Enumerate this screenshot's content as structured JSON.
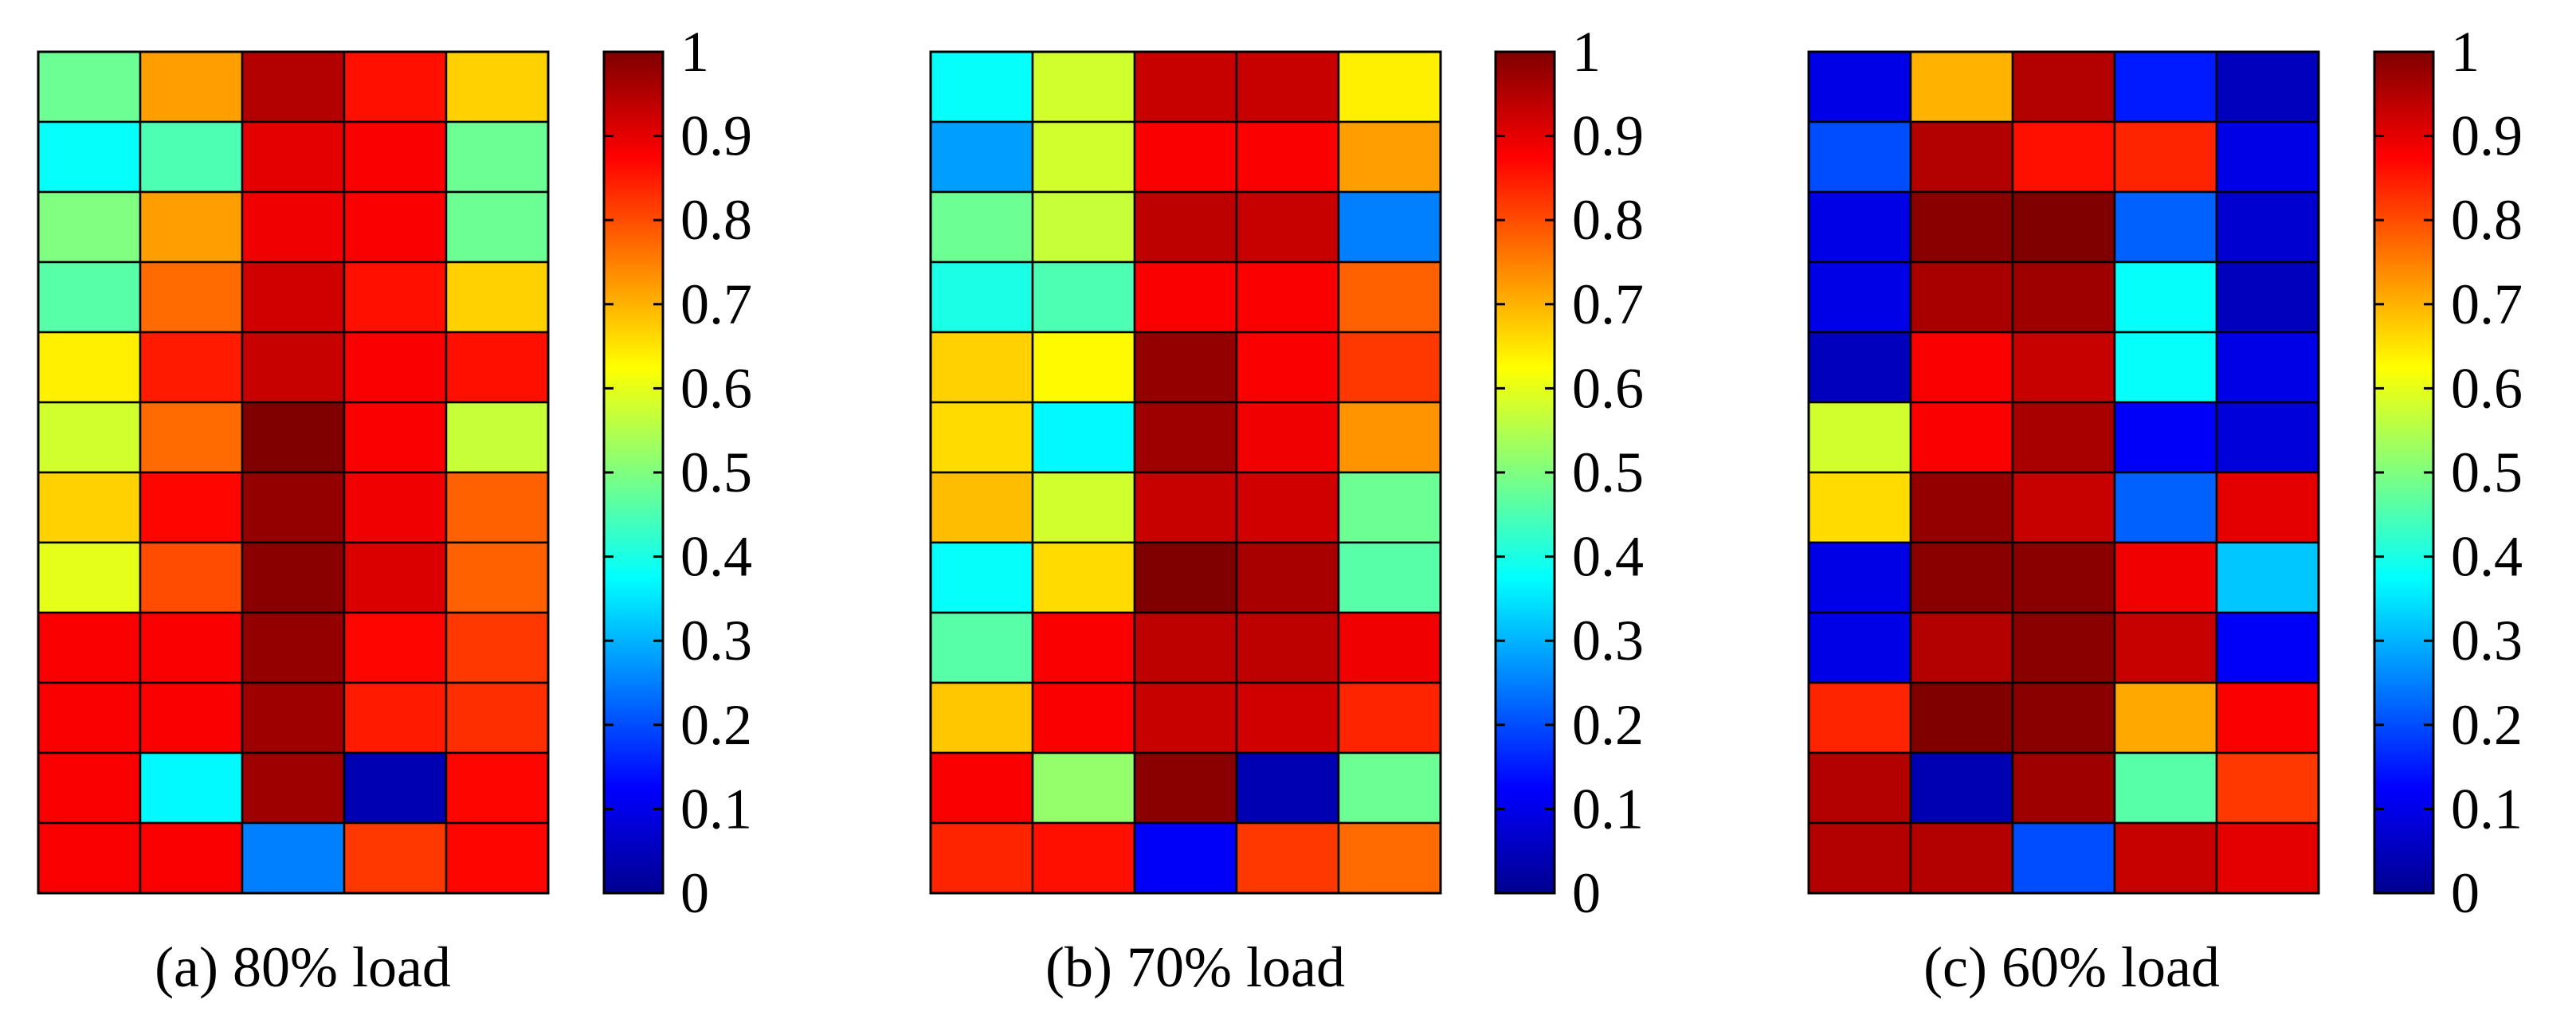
{
  "chart_data": [
    {
      "type": "heatmap",
      "caption": "(a) 80% load",
      "rows": 12,
      "cols": 5,
      "colorbar": {
        "colormap": "jet",
        "range": [
          0,
          1
        ],
        "ticks": [
          "0",
          "0.1",
          "0.2",
          "0.3",
          "0.4",
          "0.5",
          "0.6",
          "0.7",
          "0.8",
          "0.9",
          "1"
        ]
      },
      "values": [
        [
          0.48,
          0.72,
          0.95,
          0.86,
          0.67
        ],
        [
          0.38,
          0.45,
          0.9,
          0.88,
          0.48
        ],
        [
          0.5,
          0.72,
          0.89,
          0.88,
          0.48
        ],
        [
          0.46,
          0.77,
          0.92,
          0.86,
          0.67
        ],
        [
          0.64,
          0.85,
          0.93,
          0.88,
          0.86
        ],
        [
          0.58,
          0.77,
          1.0,
          0.88,
          0.57
        ],
        [
          0.67,
          0.87,
          0.98,
          0.89,
          0.78
        ],
        [
          0.6,
          0.8,
          0.99,
          0.91,
          0.78
        ],
        [
          0.88,
          0.88,
          0.98,
          0.87,
          0.82
        ],
        [
          0.88,
          0.88,
          0.97,
          0.85,
          0.83
        ],
        [
          0.88,
          0.37,
          0.97,
          0.05,
          0.87
        ],
        [
          0.88,
          0.88,
          0.25,
          0.82,
          0.87
        ]
      ]
    },
    {
      "type": "heatmap",
      "caption": "(b) 70% load",
      "rows": 12,
      "cols": 5,
      "colorbar": {
        "colormap": "jet",
        "range": [
          0,
          1
        ],
        "ticks": [
          "0",
          "0.1",
          "0.2",
          "0.3",
          "0.4",
          "0.5",
          "0.6",
          "0.7",
          "0.8",
          "0.9",
          "1"
        ]
      },
      "values": [
        [
          0.38,
          0.58,
          0.93,
          0.93,
          0.64
        ],
        [
          0.28,
          0.58,
          0.88,
          0.88,
          0.72
        ],
        [
          0.48,
          0.57,
          0.94,
          0.93,
          0.25
        ],
        [
          0.4,
          0.45,
          0.88,
          0.88,
          0.78
        ],
        [
          0.67,
          0.63,
          0.98,
          0.88,
          0.82
        ],
        [
          0.66,
          0.37,
          0.97,
          0.89,
          0.73
        ],
        [
          0.69,
          0.58,
          0.93,
          0.92,
          0.48
        ],
        [
          0.38,
          0.66,
          1.0,
          0.96,
          0.46
        ],
        [
          0.46,
          0.88,
          0.94,
          0.94,
          0.89
        ],
        [
          0.68,
          0.88,
          0.93,
          0.92,
          0.84
        ],
        [
          0.88,
          0.52,
          0.99,
          0.05,
          0.48
        ],
        [
          0.84,
          0.86,
          0.12,
          0.82,
          0.77
        ]
      ]
    },
    {
      "type": "heatmap",
      "caption": "(c) 60% load",
      "rows": 12,
      "cols": 5,
      "colorbar": {
        "colormap": "jet",
        "range": [
          0,
          1
        ],
        "ticks": [
          "0",
          "0.1",
          "0.2",
          "0.3",
          "0.4",
          "0.5",
          "0.6",
          "0.7",
          "0.8",
          "0.9",
          "1"
        ]
      },
      "values": [
        [
          0.1,
          0.7,
          0.95,
          0.15,
          0.06
        ],
        [
          0.2,
          0.95,
          0.86,
          0.84,
          0.1
        ],
        [
          0.1,
          0.99,
          1.0,
          0.22,
          0.08
        ],
        [
          0.1,
          0.96,
          0.97,
          0.38,
          0.06
        ],
        [
          0.06,
          0.88,
          0.93,
          0.38,
          0.1
        ],
        [
          0.58,
          0.88,
          0.96,
          0.12,
          0.09
        ],
        [
          0.66,
          0.98,
          0.93,
          0.22,
          0.9
        ],
        [
          0.1,
          0.99,
          0.99,
          0.89,
          0.32
        ],
        [
          0.1,
          0.95,
          0.99,
          0.93,
          0.12
        ],
        [
          0.84,
          1.0,
          0.99,
          0.71,
          0.88
        ],
        [
          0.95,
          0.05,
          0.97,
          0.46,
          0.82
        ],
        [
          0.95,
          0.95,
          0.2,
          0.93,
          0.9
        ]
      ]
    }
  ]
}
